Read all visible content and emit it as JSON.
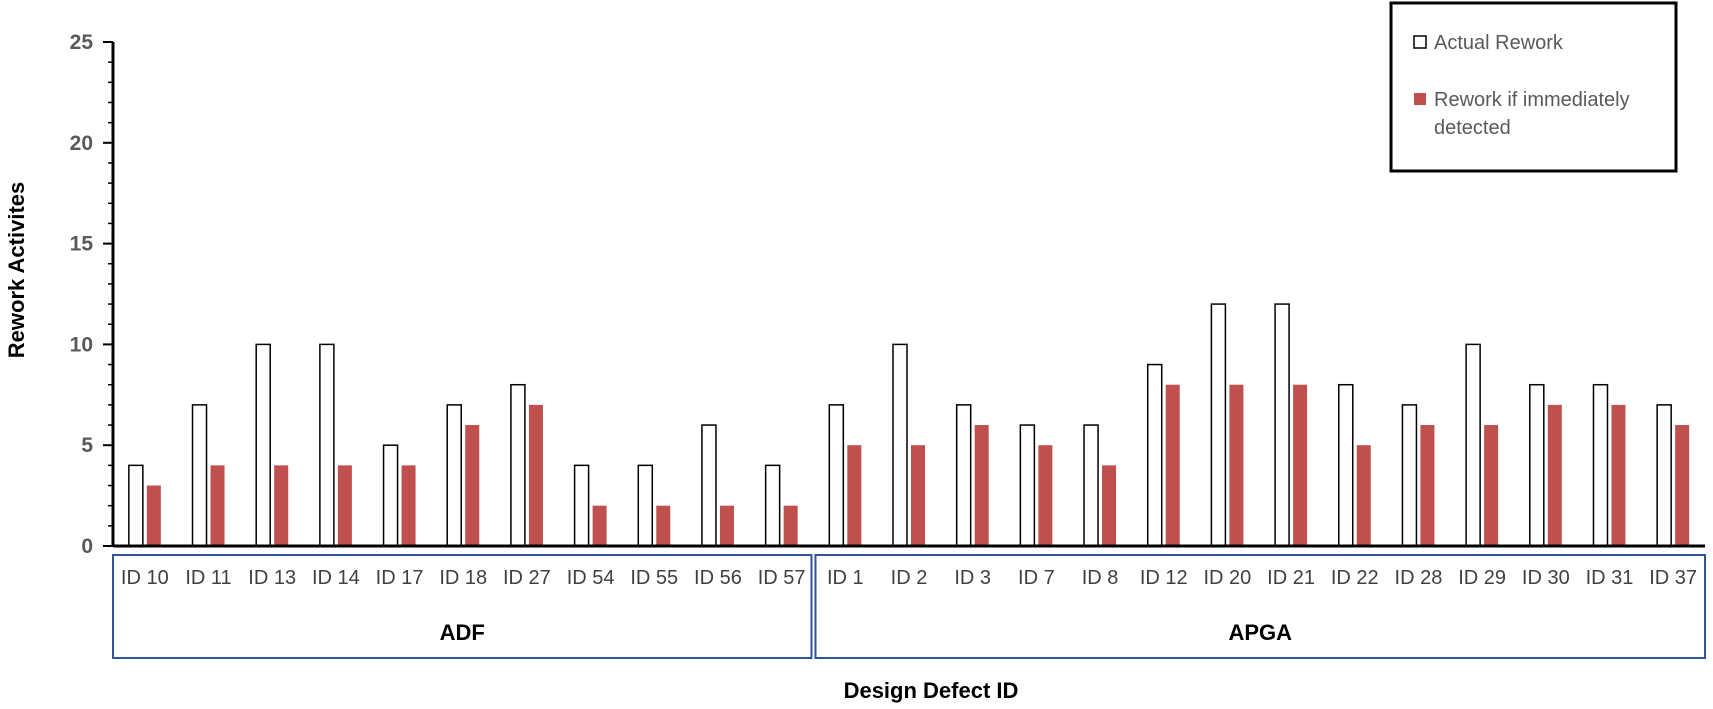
{
  "chart_data": {
    "type": "bar",
    "ylabel": "Rework Activites",
    "xlabel": "Design Defect ID",
    "ylim": [
      0,
      25
    ],
    "yticks": [
      0,
      5,
      10,
      15,
      20,
      25
    ],
    "grid": false,
    "legend_position": "top-right",
    "categories": [
      "ID 10",
      "ID 11",
      "ID 13",
      "ID 14",
      "ID 17",
      "ID 18",
      "ID 27",
      "ID 54",
      "ID 55",
      "ID 56",
      "ID 57",
      "ID 1",
      "ID 2",
      "ID 3",
      "ID 7",
      "ID 8",
      "ID 12",
      "ID 20",
      "ID 21",
      "ID 22",
      "ID 28",
      "ID 29",
      "ID 30",
      "ID 31",
      "ID 37"
    ],
    "groups": [
      {
        "label": "ADF",
        "count": 11
      },
      {
        "label": "APGA",
        "count": 14
      }
    ],
    "series": [
      {
        "name": "Actual Rework",
        "color": "#ffffff",
        "stroke": "#000000",
        "values": [
          4,
          7,
          10,
          10,
          5,
          7,
          8,
          4,
          4,
          6,
          4,
          7,
          10,
          7,
          6,
          6,
          9,
          12,
          12,
          8,
          7,
          10,
          8,
          8,
          7
        ]
      },
      {
        "name": "Rework if immediately detected",
        "color": "#c0504d",
        "stroke": "none",
        "values": [
          3,
          4,
          4,
          4,
          4,
          6,
          7,
          2,
          2,
          2,
          2,
          5,
          5,
          6,
          5,
          4,
          8,
          8,
          8,
          5,
          6,
          6,
          7,
          7,
          6
        ]
      }
    ]
  }
}
